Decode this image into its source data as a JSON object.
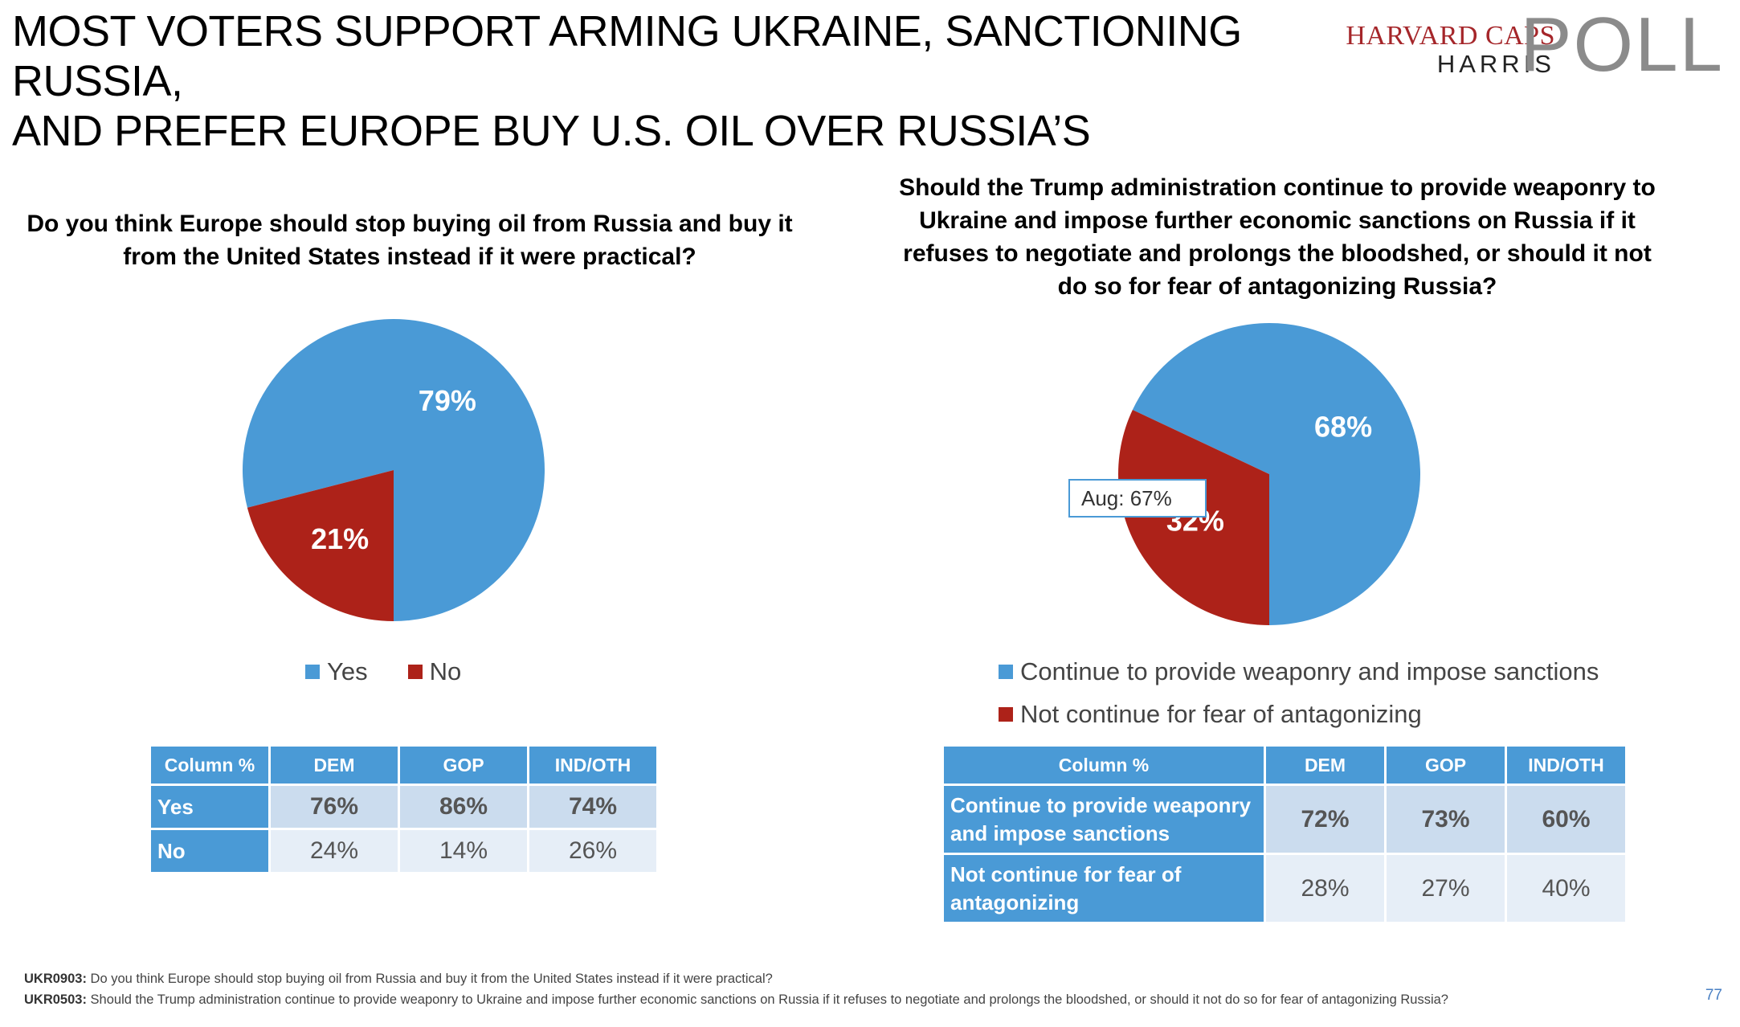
{
  "header": {
    "title_line1": "MOST VOTERS SUPPORT ARMING UKRAINE, SANCTIONING RUSSIA,",
    "title_line2": "AND PREFER EUROPE BUY U.S. OIL OVER RUSSIA’S",
    "logo": {
      "line1": "HARVARD CAPS",
      "line2": "HARRIS",
      "line3": "POLL"
    }
  },
  "left": {
    "question": "Do you think Europe should stop buying oil from Russia and buy it from the United States instead if it were practical?",
    "legend": [
      "Yes",
      "No"
    ],
    "table": {
      "headers": [
        "Column %",
        "DEM",
        "GOP",
        "IND/OTH"
      ],
      "rows": [
        {
          "label": "Yes",
          "values": [
            "76%",
            "86%",
            "74%"
          ]
        },
        {
          "label": "No",
          "values": [
            "24%",
            "14%",
            "26%"
          ]
        }
      ]
    }
  },
  "right": {
    "question": "Should the Trump administration continue to provide weaponry to Ukraine and impose further economic sanctions on Russia if it refuses to negotiate and prolongs the bloodshed, or should it not do so for fear of antagonizing Russia?",
    "callout": "Aug: 67%",
    "legend": [
      "Continue to provide weaponry and impose sanctions",
      "Not continue for fear of antagonizing"
    ],
    "table": {
      "headers": [
        "Column %",
        "DEM",
        "GOP",
        "IND/OTH"
      ],
      "rows": [
        {
          "label": "Continue to provide weaponry and impose sanctions",
          "values": [
            "72%",
            "73%",
            "60%"
          ]
        },
        {
          "label": "Not continue for fear of antagonizing",
          "values": [
            "28%",
            "27%",
            "40%"
          ]
        }
      ]
    }
  },
  "chart_data": [
    {
      "type": "pie",
      "title": "Do you think Europe should stop buying oil from Russia and buy it from the United States instead if it were practical?",
      "categories": [
        "Yes",
        "No"
      ],
      "values": [
        79,
        21
      ],
      "labels": [
        "79%",
        "21%"
      ],
      "colors": [
        "#4a9ad6",
        "#ad2219"
      ]
    },
    {
      "type": "pie",
      "title": "Should the Trump administration continue to provide weaponry to Ukraine and impose further economic sanctions on Russia if it refuses to negotiate and prolongs the bloodshed, or should it not do so for fear of antagonizing Russia?",
      "categories": [
        "Continue to provide weaponry and impose sanctions",
        "Not continue for fear of antagonizing"
      ],
      "values": [
        68,
        32
      ],
      "labels": [
        "68%",
        "32%"
      ],
      "colors": [
        "#4a9ad6",
        "#ad2219"
      ]
    }
  ],
  "footnotes": [
    {
      "id": "UKR0903:",
      "text": "Do you think Europe should stop buying oil from Russia and buy it from the United States instead if it were practical?"
    },
    {
      "id": "UKR0503:",
      "text": "Should the Trump administration continue to provide weaponry to Ukraine and impose further economic sanctions on Russia if it refuses to negotiate and prolongs the bloodshed, or should it not do so for fear of antagonizing Russia?"
    }
  ],
  "page_number": "77"
}
